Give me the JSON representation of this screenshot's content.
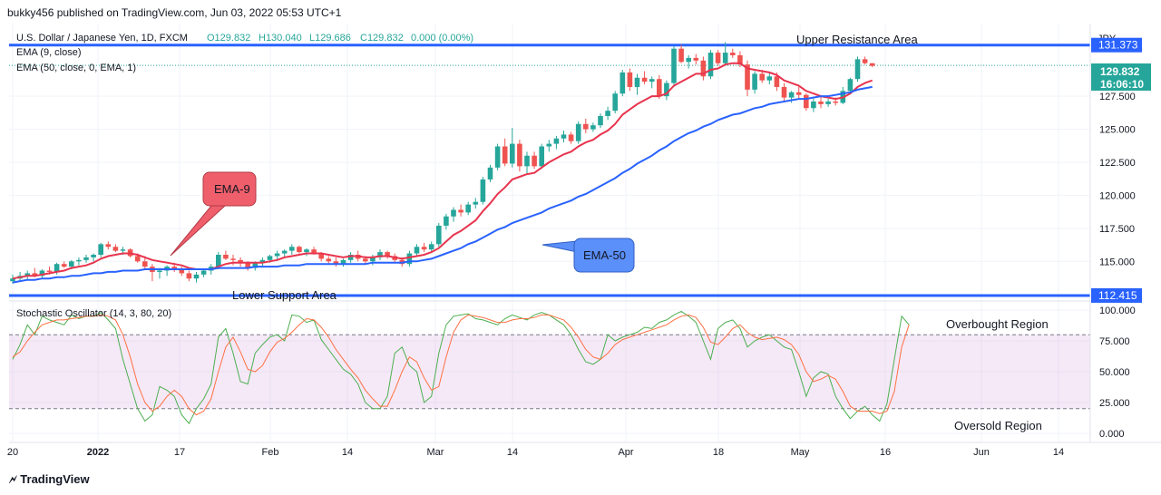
{
  "header": {
    "published": "bukky456 published on TradingView.com, Jun 03, 2022 05:53 UTC+1"
  },
  "footer": {
    "brand": "TradingView"
  },
  "chart_data": [
    {
      "type": "candlestick",
      "title": "U.S. Dollar / Japanese Yen, 1D, FXCM",
      "ohlc_label": {
        "o": "O129.832",
        "h": "H130.040",
        "l": "L129.686",
        "c": "C129.832",
        "chg": "0.000 (0.00%)"
      },
      "indicators": [
        "EMA (9, close)",
        "EMA (50, close, 0, EMA, 1)"
      ],
      "currency": "JPY",
      "price_ticks": [
        "127.500",
        "125.000",
        "122.500",
        "120.000",
        "117.500",
        "115.000"
      ],
      "y_range": [
        112.0,
        133.0
      ],
      "x_labels": [
        "20",
        "2022",
        "17",
        "Feb",
        "14",
        "Mar",
        "14",
        "Apr",
        "18",
        "May",
        "16",
        "Jun",
        "14"
      ],
      "last_price": "129.832",
      "countdown": "16:06:10",
      "resistance": {
        "price": 131.373,
        "label": "131.373",
        "name": "Upper Resistance Area"
      },
      "support": {
        "price": 112.415,
        "label": "112.415",
        "name": "Lower Support Area"
      },
      "annotations": {
        "ema9": "EMA-9",
        "ema50": "EMA-50"
      },
      "candles": [
        [
          113.5,
          114.0,
          113.3,
          113.7
        ],
        [
          113.7,
          114.2,
          113.5,
          113.9
        ],
        [
          113.9,
          114.3,
          113.6,
          114.1
        ],
        [
          114.1,
          114.5,
          113.8,
          113.9
        ],
        [
          113.9,
          114.4,
          113.7,
          114.3
        ],
        [
          114.3,
          114.6,
          114.0,
          114.2
        ],
        [
          114.2,
          114.9,
          114.0,
          114.8
        ],
        [
          114.8,
          115.0,
          114.5,
          114.6
        ],
        [
          114.6,
          115.1,
          114.4,
          115.0
        ],
        [
          115.0,
          115.3,
          114.7,
          115.1
        ],
        [
          115.1,
          115.5,
          114.9,
          115.3
        ],
        [
          115.3,
          115.6,
          115.0,
          115.5
        ],
        [
          115.5,
          116.4,
          115.3,
          116.3
        ],
        [
          116.3,
          116.5,
          115.9,
          116.1
        ],
        [
          116.1,
          116.3,
          115.7,
          115.8
        ],
        [
          115.8,
          116.1,
          115.5,
          115.9
        ],
        [
          115.9,
          116.0,
          115.3,
          115.4
        ],
        [
          115.4,
          115.6,
          114.9,
          115.0
        ],
        [
          115.0,
          115.4,
          114.4,
          114.6
        ],
        [
          114.6,
          114.8,
          113.5,
          114.2
        ],
        [
          114.2,
          114.5,
          113.7,
          114.3
        ],
        [
          114.3,
          114.7,
          113.9,
          114.6
        ],
        [
          114.6,
          114.9,
          114.2,
          114.4
        ],
        [
          114.4,
          114.6,
          113.9,
          114.1
        ],
        [
          114.1,
          114.3,
          113.5,
          113.7
        ],
        [
          113.7,
          114.2,
          113.4,
          114.0
        ],
        [
          114.0,
          114.4,
          113.8,
          114.3
        ],
        [
          114.3,
          114.8,
          114.0,
          114.6
        ],
        [
          114.6,
          115.7,
          114.4,
          115.5
        ],
        [
          115.5,
          115.8,
          115.1,
          115.2
        ],
        [
          115.2,
          115.5,
          114.7,
          115.1
        ],
        [
          115.1,
          115.3,
          114.6,
          114.9
        ],
        [
          114.9,
          115.0,
          114.3,
          114.5
        ],
        [
          114.5,
          115.0,
          114.3,
          114.9
        ],
        [
          114.9,
          115.3,
          114.6,
          115.1
        ],
        [
          115.1,
          115.5,
          114.9,
          115.4
        ],
        [
          115.4,
          115.8,
          115.1,
          115.6
        ],
        [
          115.6,
          115.9,
          115.3,
          115.8
        ],
        [
          115.8,
          116.3,
          115.5,
          116.1
        ],
        [
          116.1,
          116.2,
          115.6,
          115.7
        ],
        [
          115.7,
          116.0,
          115.4,
          115.9
        ],
        [
          115.9,
          116.1,
          115.5,
          115.6
        ],
        [
          115.6,
          115.7,
          115.0,
          115.2
        ],
        [
          115.2,
          115.4,
          114.8,
          115.0
        ],
        [
          115.0,
          115.3,
          114.6,
          114.8
        ],
        [
          114.8,
          115.2,
          114.6,
          115.1
        ],
        [
          115.1,
          115.7,
          114.9,
          115.5
        ],
        [
          115.5,
          115.8,
          115.0,
          115.2
        ],
        [
          115.2,
          115.4,
          114.8,
          115.0
        ],
        [
          115.0,
          115.5,
          114.7,
          115.3
        ],
        [
          115.3,
          115.9,
          115.1,
          115.7
        ],
        [
          115.7,
          115.8,
          115.2,
          115.4
        ],
        [
          115.4,
          115.6,
          114.9,
          115.1
        ],
        [
          115.1,
          115.3,
          114.6,
          114.8
        ],
        [
          114.8,
          115.8,
          114.6,
          115.6
        ],
        [
          115.6,
          116.3,
          115.4,
          116.1
        ],
        [
          116.1,
          116.4,
          115.7,
          115.9
        ],
        [
          115.9,
          116.5,
          115.7,
          116.3
        ],
        [
          116.3,
          117.9,
          116.1,
          117.7
        ],
        [
          117.7,
          118.6,
          117.4,
          118.4
        ],
        [
          118.4,
          119.1,
          118.0,
          118.9
        ],
        [
          118.9,
          119.3,
          118.4,
          118.7
        ],
        [
          118.7,
          119.5,
          118.5,
          119.3
        ],
        [
          119.3,
          119.8,
          119.0,
          119.5
        ],
        [
          119.5,
          121.4,
          119.3,
          121.2
        ],
        [
          121.2,
          122.3,
          121.0,
          122.1
        ],
        [
          122.1,
          123.9,
          121.9,
          123.7
        ],
        [
          123.7,
          124.3,
          122.2,
          122.4
        ],
        [
          122.4,
          125.1,
          122.1,
          123.9
        ],
        [
          123.9,
          124.2,
          121.8,
          122.2
        ],
        [
          122.2,
          123.3,
          121.6,
          123.0
        ],
        [
          123.0,
          123.3,
          122.0,
          122.2
        ],
        [
          122.2,
          123.9,
          122.0,
          123.7
        ],
        [
          123.7,
          124.2,
          123.3,
          123.9
        ],
        [
          123.9,
          124.5,
          123.5,
          124.3
        ],
        [
          124.3,
          124.9,
          124.0,
          124.6
        ],
        [
          124.6,
          124.8,
          123.9,
          124.1
        ],
        [
          124.1,
          125.6,
          123.9,
          125.4
        ],
        [
          125.4,
          125.8,
          124.7,
          125.0
        ],
        [
          125.0,
          125.5,
          124.8,
          125.3
        ],
        [
          125.3,
          126.2,
          125.1,
          126.0
        ],
        [
          126.0,
          126.7,
          125.7,
          126.4
        ],
        [
          126.4,
          127.9,
          126.2,
          127.7
        ],
        [
          127.7,
          129.5,
          127.5,
          129.3
        ],
        [
          129.3,
          129.6,
          127.9,
          128.2
        ],
        [
          128.2,
          129.2,
          127.6,
          128.9
        ],
        [
          128.9,
          129.4,
          128.4,
          128.6
        ],
        [
          128.6,
          129.0,
          128.1,
          128.8
        ],
        [
          128.8,
          129.1,
          127.3,
          127.5
        ],
        [
          127.5,
          128.7,
          127.2,
          128.5
        ],
        [
          128.5,
          131.3,
          128.2,
          131.1
        ],
        [
          131.1,
          131.4,
          130.0,
          130.1
        ],
        [
          130.1,
          130.6,
          129.6,
          130.4
        ],
        [
          130.4,
          130.7,
          129.9,
          130.2
        ],
        [
          130.2,
          130.5,
          128.7,
          129.0
        ],
        [
          129.0,
          131.0,
          128.8,
          130.8
        ],
        [
          130.8,
          131.0,
          129.8,
          130.0
        ],
        [
          130.0,
          131.6,
          129.8,
          130.8
        ],
        [
          130.8,
          131.1,
          130.4,
          130.6
        ],
        [
          130.6,
          130.9,
          129.7,
          129.9
        ],
        [
          129.9,
          130.2,
          127.5,
          128.0
        ],
        [
          128.0,
          129.4,
          127.7,
          129.2
        ],
        [
          129.2,
          129.5,
          128.5,
          128.7
        ],
        [
          128.7,
          129.3,
          128.4,
          129.0
        ],
        [
          129.0,
          129.3,
          127.9,
          128.2
        ],
        [
          128.2,
          128.5,
          127.1,
          127.4
        ],
        [
          127.4,
          127.9,
          127.0,
          127.8
        ],
        [
          127.8,
          128.2,
          127.3,
          127.6
        ],
        [
          127.6,
          127.7,
          126.4,
          126.6
        ],
        [
          126.6,
          127.3,
          126.3,
          127.1
        ],
        [
          127.1,
          127.5,
          126.6,
          126.9
        ],
        [
          126.9,
          127.3,
          126.7,
          127.1
        ],
        [
          127.1,
          127.4,
          126.8,
          127.0
        ],
        [
          127.0,
          128.2,
          126.9,
          127.9
        ],
        [
          127.9,
          128.9,
          127.7,
          128.8
        ],
        [
          128.8,
          130.5,
          128.6,
          130.3
        ],
        [
          130.3,
          130.5,
          129.9,
          130.0
        ],
        [
          130.0,
          130.0,
          129.7,
          129.8
        ]
      ],
      "ema9_y": [
        113.7,
        113.8,
        113.9,
        113.9,
        114.0,
        114.1,
        114.2,
        114.3,
        114.5,
        114.6,
        114.7,
        114.9,
        115.2,
        115.4,
        115.5,
        115.6,
        115.6,
        115.5,
        115.3,
        115.1,
        115.0,
        114.9,
        114.8,
        114.7,
        114.5,
        114.4,
        114.4,
        114.4,
        114.6,
        114.8,
        114.9,
        114.9,
        114.9,
        114.9,
        114.9,
        115.0,
        115.1,
        115.3,
        115.4,
        115.5,
        115.6,
        115.6,
        115.6,
        115.5,
        115.4,
        115.3,
        115.4,
        115.4,
        115.3,
        115.3,
        115.4,
        115.4,
        115.3,
        115.2,
        115.3,
        115.4,
        115.5,
        115.7,
        116.0,
        116.5,
        117.0,
        117.3,
        117.7,
        118.1,
        118.8,
        119.4,
        120.1,
        120.6,
        121.2,
        121.4,
        121.6,
        121.7,
        122.1,
        122.5,
        122.8,
        123.1,
        123.3,
        123.7,
        124.0,
        124.2,
        124.6,
        124.9,
        125.4,
        126.1,
        126.5,
        126.9,
        127.2,
        127.5,
        127.5,
        127.7,
        128.3,
        128.6,
        128.9,
        129.2,
        129.2,
        129.5,
        129.6,
        129.9,
        130.0,
        130.0,
        129.6,
        129.5,
        129.4,
        129.3,
        129.1,
        128.7,
        128.5,
        128.3,
        127.9,
        127.7,
        127.5,
        127.4,
        127.3,
        127.4,
        127.7,
        128.2,
        128.5,
        128.7
      ],
      "ema50_y": [
        113.4,
        113.5,
        113.6,
        113.6,
        113.7,
        113.7,
        113.8,
        113.8,
        113.9,
        113.9,
        114.0,
        114.1,
        114.1,
        114.2,
        114.2,
        114.3,
        114.3,
        114.3,
        114.4,
        114.4,
        114.4,
        114.4,
        114.4,
        114.4,
        114.4,
        114.4,
        114.4,
        114.4,
        114.5,
        114.5,
        114.5,
        114.5,
        114.5,
        114.6,
        114.6,
        114.6,
        114.6,
        114.7,
        114.7,
        114.7,
        114.8,
        114.8,
        114.8,
        114.8,
        114.8,
        114.8,
        114.8,
        114.8,
        114.8,
        114.9,
        114.9,
        114.9,
        114.9,
        114.9,
        115.0,
        115.0,
        115.1,
        115.2,
        115.4,
        115.6,
        115.8,
        116.0,
        116.3,
        116.5,
        116.8,
        117.1,
        117.4,
        117.6,
        117.9,
        118.1,
        118.3,
        118.5,
        118.7,
        119.0,
        119.2,
        119.4,
        119.6,
        119.9,
        120.1,
        120.4,
        120.7,
        121.0,
        121.3,
        121.7,
        122.0,
        122.4,
        122.7,
        123.0,
        123.4,
        123.7,
        124.1,
        124.4,
        124.7,
        124.9,
        125.2,
        125.4,
        125.7,
        125.9,
        126.1,
        126.2,
        126.4,
        126.6,
        126.7,
        126.9,
        127.0,
        127.1,
        127.2,
        127.3,
        127.3,
        127.4,
        127.5,
        127.5,
        127.6,
        127.7,
        127.8,
        128.0,
        128.1,
        128.2
      ]
    },
    {
      "type": "line",
      "title": "Stochastic Oscillator (14, 3, 80, 20)",
      "y_range": [
        0,
        100
      ],
      "y_ticks": [
        "100.000",
        "75.000",
        "50.000",
        "25.000",
        "0.000"
      ],
      "overbought": 80,
      "oversold": 20,
      "labels": {
        "overbought": "Overbought Region",
        "oversold": "Oversold Region"
      },
      "series": [
        {
          "color": "#4caf50",
          "values": [
            60,
            72,
            88,
            80,
            95,
            92,
            90,
            88,
            96,
            93,
            95,
            95,
            98,
            92,
            85,
            60,
            40,
            20,
            10,
            15,
            38,
            35,
            30,
            15,
            8,
            20,
            28,
            40,
            78,
            85,
            65,
            42,
            40,
            65,
            72,
            78,
            80,
            75,
            96,
            95,
            90,
            92,
            76,
            68,
            60,
            52,
            48,
            40,
            25,
            20,
            20,
            30,
            65,
            70,
            55,
            50,
            25,
            30,
            65,
            88,
            95,
            96,
            97,
            93,
            92,
            90,
            88,
            93,
            96,
            94,
            92,
            96,
            98,
            96,
            92,
            88,
            80,
            68,
            58,
            56,
            60,
            80,
            75,
            78,
            80,
            82,
            86,
            85,
            90,
            92,
            96,
            99,
            95,
            90,
            75,
            60,
            85,
            90,
            92,
            85,
            70,
            75,
            78,
            80,
            75,
            70,
            68,
            50,
            30,
            45,
            50,
            48,
            30,
            20,
            12,
            18,
            22,
            15,
            10,
            24,
            60,
            95,
            88
          ]
        },
        {
          "color": "#ff7043",
          "values": [
            62,
            66,
            75,
            82,
            88,
            90,
            92,
            92,
            93,
            94,
            95,
            95,
            96,
            95,
            92,
            80,
            62,
            40,
            25,
            18,
            22,
            30,
            35,
            30,
            20,
            15,
            18,
            28,
            50,
            70,
            78,
            66,
            52,
            50,
            55,
            66,
            74,
            77,
            82,
            88,
            93,
            92,
            86,
            78,
            68,
            60,
            52,
            45,
            35,
            28,
            22,
            22,
            35,
            50,
            62,
            58,
            45,
            35,
            38,
            62,
            82,
            92,
            96,
            95,
            94,
            92,
            90,
            90,
            92,
            93,
            93,
            94,
            96,
            96,
            94,
            92,
            86,
            78,
            68,
            62,
            60,
            65,
            72,
            76,
            78,
            80,
            82,
            84,
            86,
            88,
            92,
            95,
            96,
            94,
            86,
            74,
            72,
            78,
            85,
            88,
            82,
            78,
            76,
            77,
            78,
            76,
            72,
            64,
            50,
            42,
            44,
            47,
            44,
            34,
            22,
            18,
            18,
            18,
            16,
            18,
            34,
            70,
            88
          ]
        }
      ]
    }
  ]
}
